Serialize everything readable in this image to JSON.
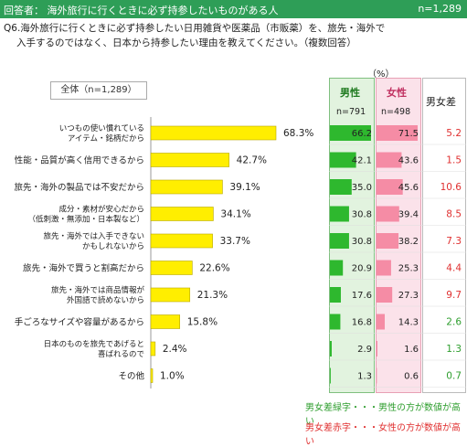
{
  "header": {
    "respondents": "回答者： 海外旅行に行くときに必ず持参したいものがある人",
    "n": "n=1,289"
  },
  "question": {
    "line1": "Q6.海外旅行に行くときに必ず持参したい日用雑貨や医薬品（市販薬）を、旅先・海外で",
    "line2": "入手するのではなく、日本から持参したい理由を教えてください。（複数回答）"
  },
  "unit": "（%）",
  "all_label": "全体（n=1,289）",
  "table": {
    "male_label": "男性",
    "male_n": "n=791",
    "female_label": "女性",
    "female_n": "n=498",
    "diff_label": "男女差"
  },
  "legend": {
    "green": "男女差緑字・・・男性の方が数値が高い",
    "red": "男女差赤字・・・女性の方が数値が高い"
  },
  "colors": {
    "bar": "#ffee00",
    "male_bar": "#2eb82e",
    "female_bar": "#f58ca5",
    "green_text": "#2e9e2e",
    "red_text": "#e03030"
  },
  "chart_data": {
    "type": "bar",
    "categories": [
      [
        "いつもの使い慣れている",
        "アイテム・銘柄だから"
      ],
      [
        "性能・品質が高く信用できるから"
      ],
      [
        "旅先・海外の製品では不安だから"
      ],
      [
        "成分・素材が安心だから",
        "（低刺激・無添加・日本製など）"
      ],
      [
        "旅先・海外では入手できない",
        "かもしれないから"
      ],
      [
        "旅先・海外で買うと割高だから"
      ],
      [
        "旅先・海外では商品情報が",
        "外国語で読めないから"
      ],
      [
        "手ごろなサイズや容量があるから"
      ],
      [
        "日本のものを旅先であげると",
        "喜ばれるので"
      ],
      [
        "その他"
      ]
    ],
    "values": [
      68.3,
      42.7,
      39.1,
      34.1,
      33.7,
      22.6,
      21.3,
      15.8,
      2.4,
      1.0
    ],
    "value_labels": [
      "68.3%",
      "42.7%",
      "39.1%",
      "34.1%",
      "33.7%",
      "22.6%",
      "21.3%",
      "15.8%",
      "2.4%",
      "1.0%"
    ],
    "male": [
      66.2,
      42.1,
      35.0,
      30.8,
      30.8,
      20.9,
      17.6,
      16.8,
      2.9,
      1.3
    ],
    "female": [
      71.5,
      43.6,
      45.6,
      39.4,
      38.2,
      25.3,
      27.3,
      14.3,
      1.6,
      0.6
    ],
    "diff": [
      "5.2",
      "1.5",
      "10.6",
      "8.5",
      "7.3",
      "4.4",
      "9.7",
      "2.6",
      "1.3",
      "0.7"
    ],
    "diff_sign": [
      "red",
      "red",
      "red",
      "red",
      "red",
      "red",
      "red",
      "green",
      "green",
      "green"
    ],
    "xlim": [
      0,
      100
    ]
  }
}
